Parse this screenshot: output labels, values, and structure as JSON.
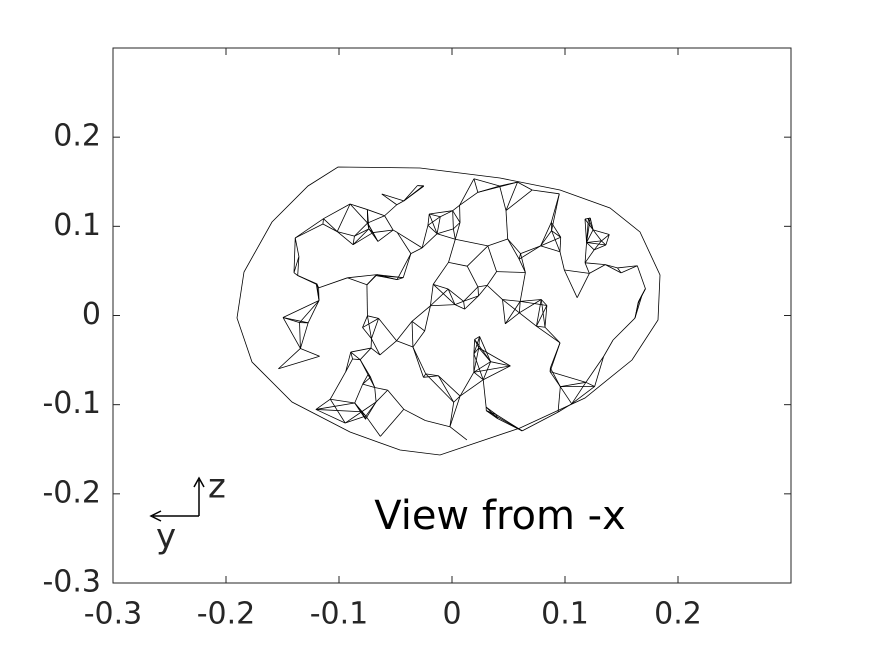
{
  "chart_data": {
    "type": "mesh",
    "annotation": "View from -x",
    "triad_labels": {
      "horizontal": "y",
      "vertical": "z"
    },
    "xlim": [
      -0.3,
      0.3
    ],
    "xticks": [
      -0.3,
      -0.2,
      -0.1,
      0,
      0.1,
      0.2
    ],
    "ylim": [
      -0.3,
      0.3
    ],
    "yticks": [
      -0.3,
      -0.2,
      -0.1,
      0,
      0.1,
      0.2
    ],
    "grid": false
  }
}
